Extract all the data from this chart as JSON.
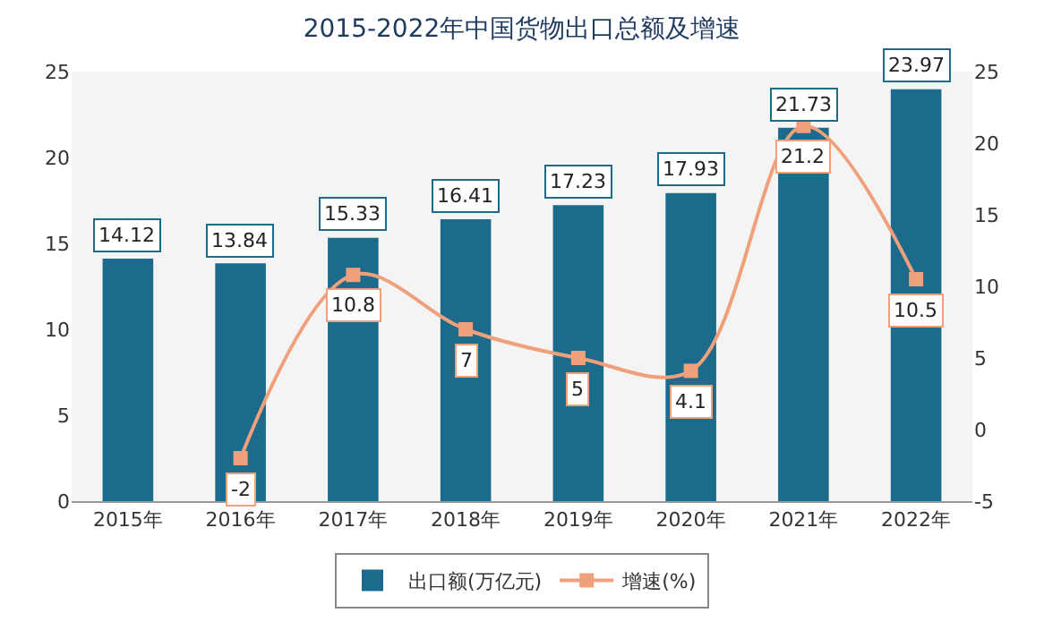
{
  "chart_data": {
    "type": "bar",
    "title": "2015-2022年中国货物出口总额及增速",
    "categories": [
      "2015年",
      "2016年",
      "2017年",
      "2018年",
      "2019年",
      "2020年",
      "2021年",
      "2022年"
    ],
    "series": [
      {
        "name": "出口额(万亿元)",
        "color": "#1c6a8c",
        "values": [
          14.12,
          13.84,
          15.33,
          16.41,
          17.23,
          17.93,
          21.73,
          23.97
        ]
      },
      {
        "name": "增速(%)",
        "type": "line",
        "axis": "y2",
        "color": "#f0a07a",
        "marker": "square",
        "line_style": "solid",
        "values": [
          null,
          -2,
          10.8,
          7,
          5,
          4.1,
          21.2,
          10.5
        ]
      }
    ],
    "ylim": [
      0,
      25
    ],
    "yticks": [
      0,
      5,
      10,
      15,
      20,
      25
    ],
    "y2lim": [
      -5,
      25
    ],
    "y2ticks": [
      -5,
      0,
      5,
      10,
      15,
      20,
      25
    ],
    "data_labels": true,
    "grid": false,
    "legend": "bottom"
  }
}
